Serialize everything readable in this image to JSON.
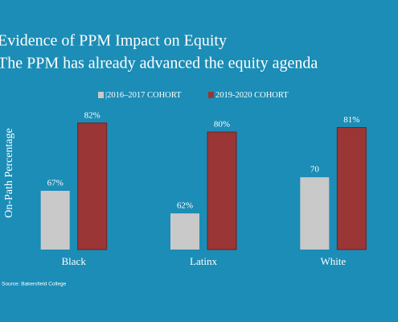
{
  "chart_data": {
    "type": "bar",
    "title": "Evidence of PPM Impact on Equity",
    "subtitle": "The PPM has already advanced the equity agenda",
    "y_label": "On-Path Percentage",
    "source": "Source: Bakersfield College",
    "categories": [
      "Black",
      "Latinx",
      "White"
    ],
    "series": [
      {
        "name": "|2016–2017 COHORT",
        "color": "#c9c9c9",
        "values": [
          67,
          62,
          70
        ],
        "value_labels": [
          "67%",
          "62%",
          "70"
        ]
      },
      {
        "name": "2019-2020 COHORT",
        "color": "#9b3636",
        "values": [
          82,
          80,
          81
        ],
        "value_labels": [
          "82%",
          "80%",
          "81%"
        ]
      }
    ],
    "ylim": [
      54,
      85
    ],
    "legend": "top"
  }
}
